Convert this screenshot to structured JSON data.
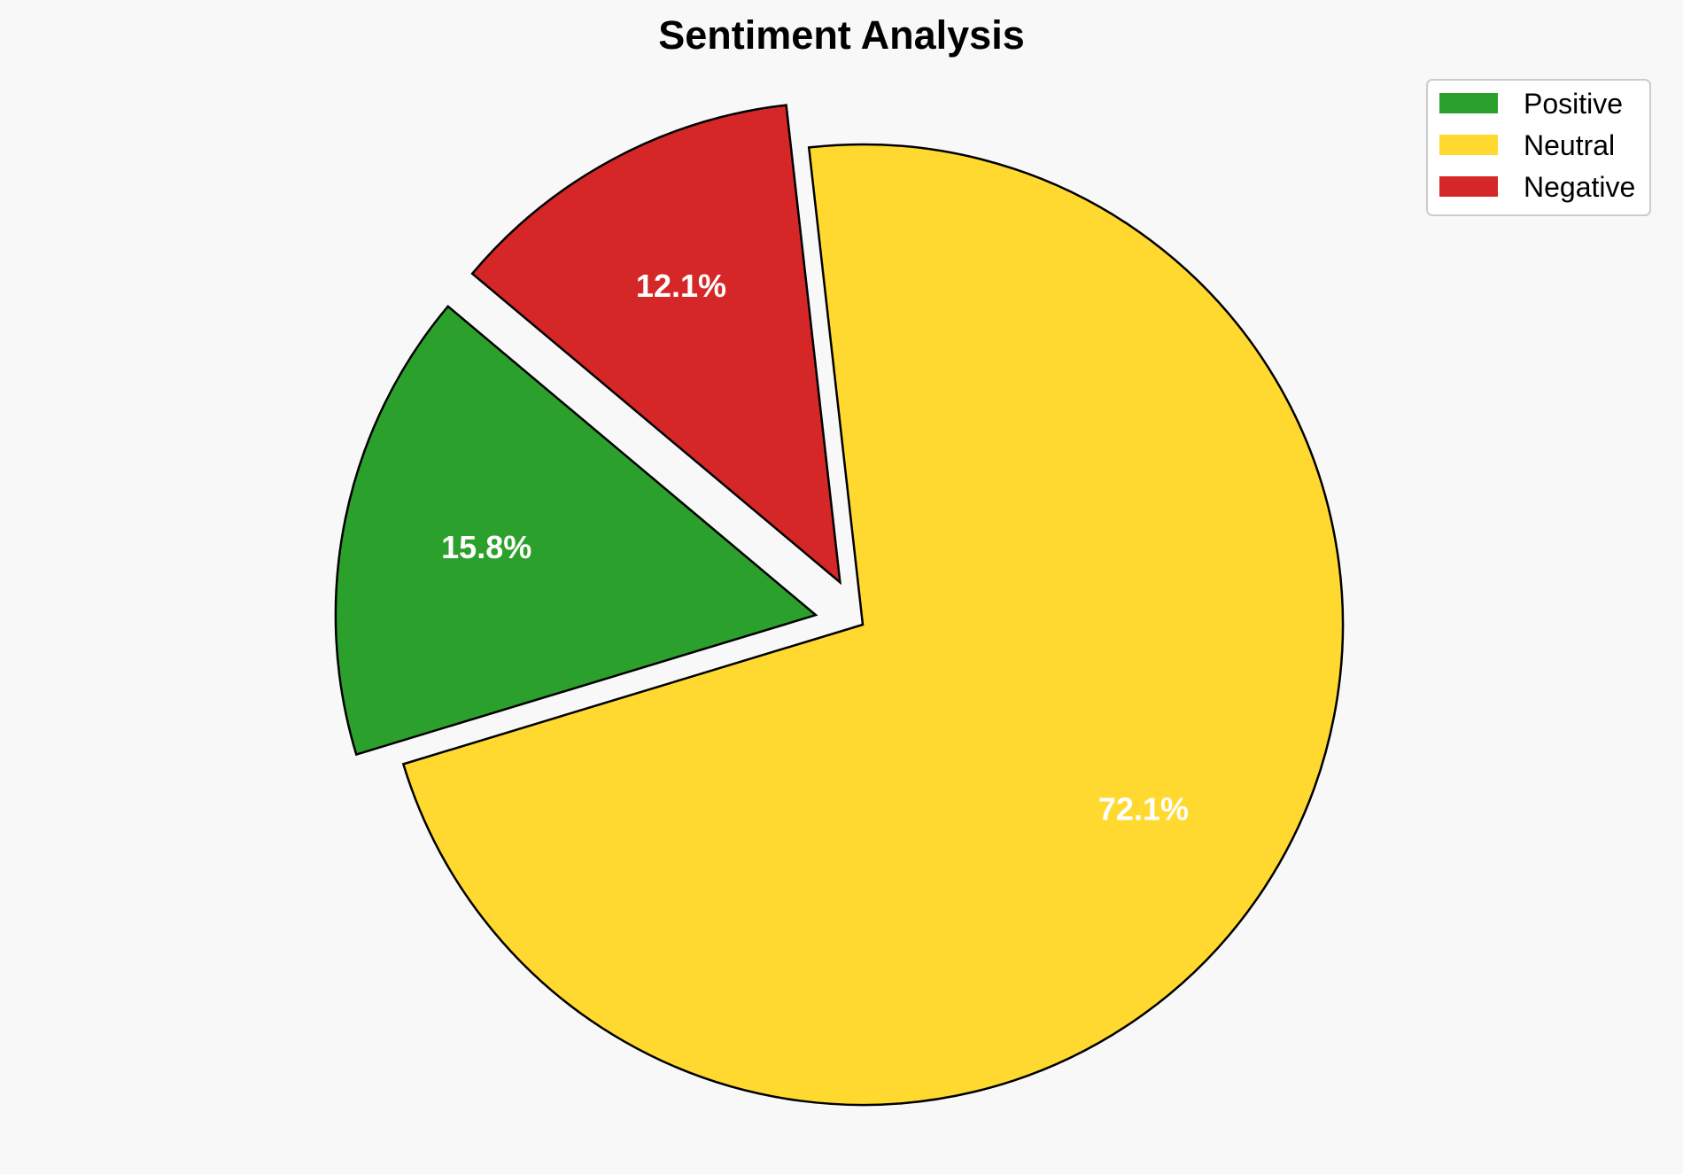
{
  "chart_data": {
    "type": "pie",
    "title": "Sentiment Analysis",
    "categories": [
      "Positive",
      "Neutral",
      "Negative"
    ],
    "values": [
      15.8,
      72.1,
      12.1
    ],
    "labels": [
      "15.8%",
      "72.1%",
      "12.1%"
    ],
    "colors": [
      "#2ca02c",
      "#ffd92f",
      "#d62728"
    ],
    "explode": [
      0.1,
      0,
      0.1
    ],
    "startangle": 140,
    "counterclockwise": true,
    "edgecolor": "#000000",
    "legend": {
      "placement": "top-right",
      "entries": [
        "Positive",
        "Neutral",
        "Negative"
      ]
    }
  }
}
